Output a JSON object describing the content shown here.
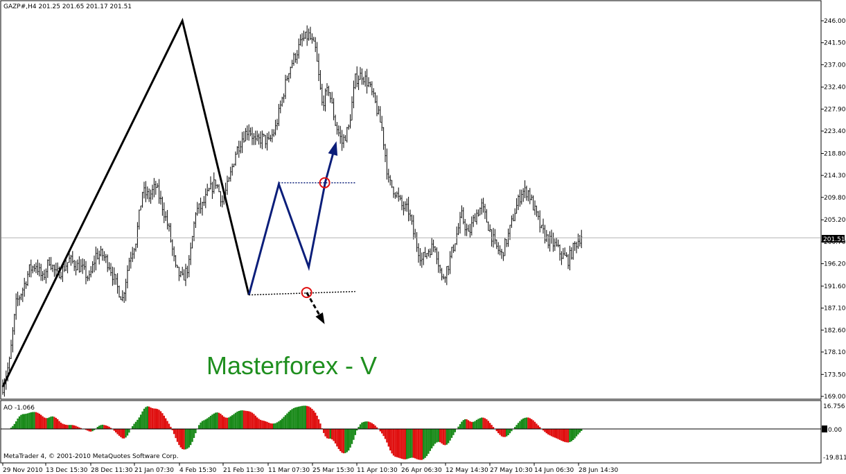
{
  "header": {
    "symbol_line": "GAZP#,H4  201.25 201.65 201.17 201.51"
  },
  "watermark": "Masterforex - V",
  "copyright": "MetaTrader 4, © 2001-2010 MetaQuotes Software Corp.",
  "indicator": {
    "label": "AO -1.066",
    "axis_labels": [
      "16.756",
      "0.00",
      "-19.811"
    ]
  },
  "current_price": "201.51",
  "colors": {
    "candles": "#000000",
    "zigzag_main": "#000000",
    "pattern": "#0b1e7a",
    "ao_up": "#1a8a1a",
    "ao_down": "#e01010",
    "circle": "#e01010",
    "watermark": "#1f8f1f"
  },
  "chart_data": [
    {
      "type": "candlestick",
      "title": "GAZP#,H4",
      "ylim": [
        169.0,
        246.0
      ],
      "y_ticks": [
        "246.00",
        "241.50",
        "237.00",
        "232.40",
        "227.90",
        "223.40",
        "218.80",
        "214.30",
        "209.80",
        "205.20",
        "200.70",
        "196.20",
        "191.60",
        "187.10",
        "182.60",
        "178.10",
        "173.50",
        "169.00"
      ],
      "x_ticks": [
        "29 Nov 2010",
        "13 Dec 15:30",
        "28 Dec 11:30",
        "21 Jan 07:30",
        "4 Feb 15:30",
        "21 Feb 11:30",
        "11 Mar 07:30",
        "25 Mar 15:30",
        "11 Apr 10:30",
        "26 Apr 06:30",
        "12 May 14:30",
        "27 May 10:30",
        "14 Jun 06:30",
        "28 Jun 14:30"
      ],
      "last_price": 201.51,
      "price_path": [
        [
          0,
          171
        ],
        [
          4,
          176
        ],
        [
          8,
          188
        ],
        [
          12,
          191
        ],
        [
          16,
          195
        ],
        [
          20,
          196
        ],
        [
          24,
          193
        ],
        [
          28,
          197
        ],
        [
          32,
          194
        ],
        [
          36,
          195
        ],
        [
          40,
          197
        ],
        [
          44,
          196
        ],
        [
          48,
          195
        ],
        [
          52,
          193
        ],
        [
          56,
          198
        ],
        [
          60,
          198
        ],
        [
          64,
          196
        ],
        [
          68,
          192
        ],
        [
          72,
          189
        ],
        [
          76,
          197
        ],
        [
          80,
          201
        ],
        [
          84,
          211
        ],
        [
          88,
          210
        ],
        [
          92,
          212
        ],
        [
          96,
          208
        ],
        [
          100,
          203
        ],
        [
          104,
          195
        ],
        [
          108,
          193
        ],
        [
          112,
          196
        ],
        [
          116,
          207
        ],
        [
          120,
          208
        ],
        [
          124,
          211
        ],
        [
          128,
          213
        ],
        [
          132,
          209
        ],
        [
          136,
          213
        ],
        [
          140,
          219
        ],
        [
          144,
          222
        ],
        [
          148,
          224
        ],
        [
          152,
          221
        ],
        [
          156,
          222
        ],
        [
          160,
          221
        ],
        [
          164,
          224
        ],
        [
          168,
          230
        ],
        [
          172,
          236
        ],
        [
          176,
          239
        ],
        [
          180,
          242
        ],
        [
          184,
          243
        ],
        [
          188,
          240
        ],
        [
          192,
          229
        ],
        [
          196,
          232
        ],
        [
          200,
          225
        ],
        [
          204,
          221
        ],
        [
          208,
          224
        ],
        [
          212,
          234
        ],
        [
          216,
          235
        ],
        [
          220,
          233
        ],
        [
          224,
          229
        ],
        [
          228,
          224
        ],
        [
          232,
          213
        ],
        [
          236,
          211
        ],
        [
          240,
          208
        ],
        [
          244,
          207
        ],
        [
          248,
          201
        ],
        [
          252,
          197
        ],
        [
          256,
          199
        ],
        [
          260,
          200
        ],
        [
          264,
          193
        ],
        [
          268,
          196
        ],
        [
          272,
          201
        ],
        [
          276,
          206
        ],
        [
          280,
          202
        ],
        [
          284,
          206
        ],
        [
          288,
          208
        ],
        [
          292,
          204
        ],
        [
          296,
          200
        ],
        [
          300,
          198
        ],
        [
          304,
          202
        ],
        [
          308,
          207
        ],
        [
          312,
          211
        ],
        [
          316,
          211
        ],
        [
          320,
          207
        ],
        [
          324,
          203
        ],
        [
          328,
          201
        ],
        [
          332,
          200
        ],
        [
          336,
          198
        ],
        [
          340,
          197
        ],
        [
          344,
          200
        ],
        [
          348,
          202
        ]
      ],
      "zigzag": [
        [
          0,
          171
        ],
        [
          108,
          246
        ],
        [
          148,
          189.8
        ],
        [
          166,
          214
        ]
      ],
      "pattern_v": [
        [
          148,
          189.8
        ],
        [
          166,
          212.5
        ],
        [
          184,
          195.5
        ],
        [
          194,
          213
        ],
        [
          200,
          220.5
        ]
      ],
      "levels": {
        "upper": {
          "from": [
            166,
            212.8
          ],
          "to": [
            212,
            212.8
          ]
        },
        "lower": {
          "from": [
            148,
            189.8
          ],
          "to": [
            212,
            190.5
          ]
        },
        "breakdown_arrow": {
          "from": [
            200,
            190.3
          ],
          "to": [
            204,
            184
          ]
        }
      }
    },
    {
      "type": "bar",
      "title": "AO",
      "ylim": [
        -19.811,
        16.756
      ],
      "current_value": -1.066
    }
  ]
}
